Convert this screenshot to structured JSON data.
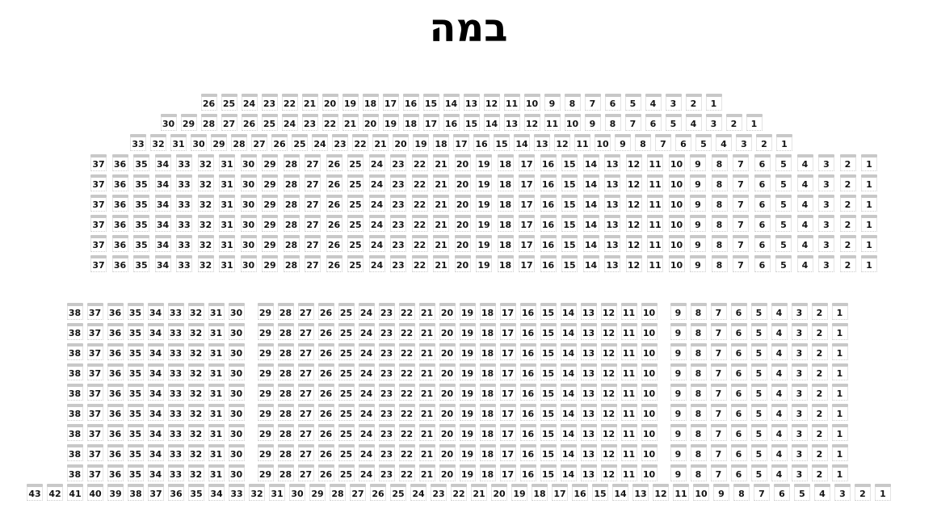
{
  "title": "במה",
  "colors": {
    "background": "#ffffff",
    "title_text": "#000000",
    "seat_back": "#c8c8c8",
    "seat_body": "#ffffff",
    "seat_border": "#e4e4e4",
    "seat_number_text": "#141414"
  },
  "seat_map": {
    "upper_section": {
      "rows": [
        {
          "repeat": 1,
          "seat_groups": [
            [
              26,
              25,
              24,
              23,
              22,
              21,
              20,
              19,
              18,
              17,
              16,
              15,
              14,
              13,
              12,
              11,
              10,
              9,
              8,
              7,
              6,
              5,
              4,
              3,
              2,
              1
            ]
          ]
        },
        {
          "repeat": 1,
          "seat_groups": [
            [
              30,
              29,
              28,
              27,
              26,
              25,
              24,
              23,
              22,
              21,
              20,
              19,
              18,
              17,
              16,
              15,
              14,
              13,
              12,
              11,
              10,
              9,
              8,
              7,
              6,
              5,
              4,
              3,
              2,
              1
            ]
          ]
        },
        {
          "repeat": 1,
          "seat_groups": [
            [
              33,
              32,
              31,
              30,
              29,
              28,
              27,
              26,
              25,
              24,
              23,
              22,
              21,
              20,
              19,
              18,
              17,
              16,
              15,
              14,
              13,
              12,
              11,
              10,
              9,
              8,
              7,
              6,
              5,
              4,
              3,
              2,
              1
            ]
          ]
        },
        {
          "repeat": 6,
          "seat_groups": [
            [
              37,
              36,
              35,
              34,
              33,
              32,
              31,
              30,
              29,
              28,
              27,
              26,
              25,
              24,
              23,
              22,
              21,
              20,
              19,
              18,
              17,
              16,
              15,
              14,
              13,
              12,
              11,
              10,
              9,
              8,
              7,
              6,
              5,
              4,
              3,
              2,
              1
            ]
          ]
        }
      ]
    },
    "lower_section": {
      "rows": [
        {
          "repeat": 9,
          "seat_groups": [
            [
              38,
              37,
              36,
              35,
              34,
              33,
              32,
              31,
              30
            ],
            [
              29,
              28,
              27,
              26,
              25,
              24,
              23,
              22,
              21,
              20,
              19,
              18,
              17,
              16,
              15,
              14,
              13,
              12,
              11,
              10
            ],
            [
              9,
              8,
              7,
              6,
              5,
              4,
              3,
              2,
              1
            ]
          ]
        },
        {
          "repeat": 1,
          "seat_groups": [
            [
              43,
              42,
              41,
              40,
              39,
              38,
              37,
              36,
              35,
              34,
              33,
              32,
              31,
              30,
              29,
              28,
              27,
              26,
              25,
              24,
              23,
              22,
              21,
              20,
              19,
              18,
              17,
              16,
              15,
              14,
              13,
              12,
              11,
              10,
              9,
              8,
              7,
              6,
              5,
              4,
              3,
              2,
              1
            ]
          ]
        }
      ]
    }
  }
}
